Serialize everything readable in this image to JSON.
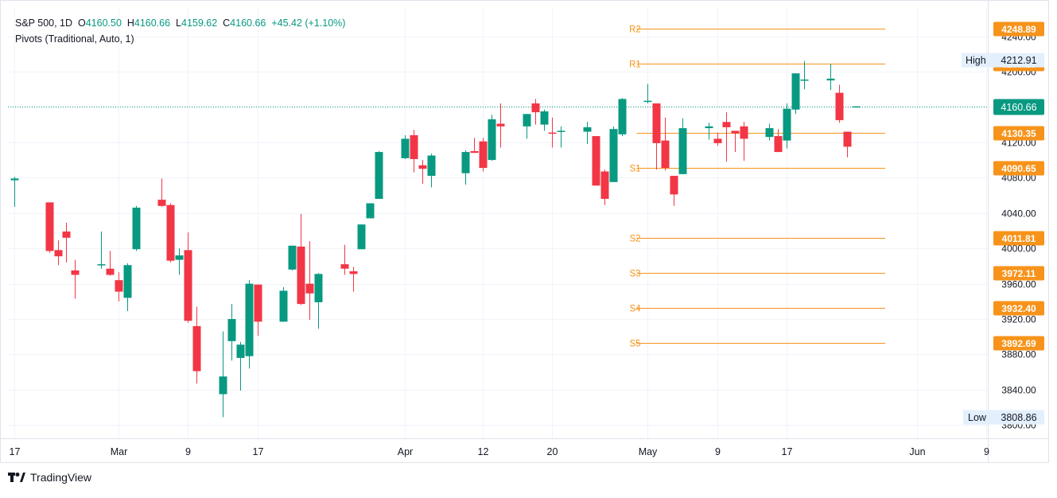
{
  "header": {
    "symbol": "S&P 500, 1D",
    "open_label": "O",
    "open": "4160.50",
    "high_label": "H",
    "high": "4160.66",
    "low_label": "L",
    "low": "4159.62",
    "close_label": "C",
    "close": "4160.66",
    "change": "+45.42 (+1.10%)",
    "indicator": "Pivots (Traditional, Auto, 1)"
  },
  "colors": {
    "up": "#089981",
    "down": "#f23645",
    "pivot": "#f7931a",
    "grid": "#f0f3fa",
    "axis_text": "#131722",
    "last_price": "#089981"
  },
  "footer": {
    "brand": "TradingView",
    "logo": "tradingview-logo-icon"
  },
  "chart_data": {
    "type": "candlestick",
    "y_range": [
      3785,
      4272
    ],
    "y_ticks": [
      3800,
      3840,
      3880,
      3920,
      3960,
      4000,
      4040,
      4080,
      4120,
      4160,
      4200,
      4240
    ],
    "y_tick_labels": [
      "3800.00",
      "3840.00",
      "3880.00",
      "3920.00",
      "3960.00",
      "4000.00",
      "4040.00",
      "4080.00",
      "4120.00",
      "4160.00",
      "4200.00",
      "4240.00"
    ],
    "x_ticks": [
      {
        "label": "17",
        "date": "2023-02-17"
      },
      {
        "label": "Mar",
        "date": "2023-03-01"
      },
      {
        "label": "9",
        "date": "2023-03-09"
      },
      {
        "label": "17",
        "date": "2023-03-17"
      },
      {
        "label": "Apr",
        "date": "2023-04-03"
      },
      {
        "label": "12",
        "date": "2023-04-12"
      },
      {
        "label": "20",
        "date": "2023-04-20"
      },
      {
        "label": "May",
        "date": "2023-05-01"
      },
      {
        "label": "9",
        "date": "2023-05-09"
      },
      {
        "label": "17",
        "date": "2023-05-17"
      },
      {
        "label": "Jun",
        "date": "2023-06-01"
      },
      {
        "label": "9",
        "date": "2023-06-09"
      }
    ],
    "candles": [
      {
        "date": "2023-02-17",
        "o": 4077,
        "h": 4081,
        "l": 4047,
        "c": 4079
      },
      {
        "date": "2023-02-21",
        "o": 4052,
        "h": 4052,
        "l": 3995,
        "c": 3997
      },
      {
        "date": "2023-02-22",
        "o": 3998,
        "h": 4009,
        "l": 3981,
        "c": 3991
      },
      {
        "date": "2023-02-23",
        "o": 4019,
        "h": 4029,
        "l": 3984,
        "c": 4012
      },
      {
        "date": "2023-02-24",
        "o": 3975,
        "h": 3987,
        "l": 3943,
        "c": 3970
      },
      {
        "date": "2023-02-27",
        "o": 3982,
        "h": 4019,
        "l": 3977,
        "c": 3982
      },
      {
        "date": "2023-02-28",
        "o": 3977,
        "h": 3997,
        "l": 3969,
        "c": 3970
      },
      {
        "date": "2023-03-01",
        "o": 3964,
        "h": 3973,
        "l": 3940,
        "c": 3951
      },
      {
        "date": "2023-03-02",
        "o": 3944,
        "h": 3983,
        "l": 3929,
        "c": 3981
      },
      {
        "date": "2023-03-03",
        "o": 3999,
        "h": 4048,
        "l": 3997,
        "c": 4046
      },
      {
        "date": "2023-03-06",
        "o": 4055,
        "h": 4079,
        "l": 4047,
        "c": 4048
      },
      {
        "date": "2023-03-07",
        "o": 4049,
        "h": 4051,
        "l": 3984,
        "c": 3986
      },
      {
        "date": "2023-03-08",
        "o": 3987,
        "h": 4000,
        "l": 3970,
        "c": 3992
      },
      {
        "date": "2023-03-09",
        "o": 3998,
        "h": 4018,
        "l": 3916,
        "c": 3918
      },
      {
        "date": "2023-03-10",
        "o": 3912,
        "h": 3934,
        "l": 3847,
        "c": 3861
      },
      {
        "date": "2023-03-13",
        "o": 3835,
        "h": 3906,
        "l": 3809,
        "c": 3855
      },
      {
        "date": "2023-03-14",
        "o": 3895,
        "h": 3937,
        "l": 3873,
        "c": 3920
      },
      {
        "date": "2023-03-15",
        "o": 3876,
        "h": 3894,
        "l": 3839,
        "c": 3891
      },
      {
        "date": "2023-03-16",
        "o": 3878,
        "h": 3964,
        "l": 3864,
        "c": 3960
      },
      {
        "date": "2023-03-17",
        "o": 3959,
        "h": 3959,
        "l": 3901,
        "c": 3917
      },
      {
        "date": "2023-03-20",
        "o": 3917,
        "h": 3956,
        "l": 3917,
        "c": 3952
      },
      {
        "date": "2023-03-21",
        "o": 3976,
        "h": 4003,
        "l": 3975,
        "c": 4003
      },
      {
        "date": "2023-03-22",
        "o": 4002,
        "h": 4039,
        "l": 3936,
        "c": 3937
      },
      {
        "date": "2023-03-23",
        "o": 3960,
        "h": 4008,
        "l": 3919,
        "c": 3949
      },
      {
        "date": "2023-03-24",
        "o": 3939,
        "h": 3972,
        "l": 3909,
        "c": 3971
      },
      {
        "date": "2023-03-27",
        "o": 3982,
        "h": 4004,
        "l": 3970,
        "c": 3977
      },
      {
        "date": "2023-03-28",
        "o": 3974,
        "h": 3979,
        "l": 3951,
        "c": 3971
      },
      {
        "date": "2023-03-29",
        "o": 3999,
        "h": 4027,
        "l": 3999,
        "c": 4027
      },
      {
        "date": "2023-03-30",
        "o": 4034,
        "h": 4047,
        "l": 4034,
        "c": 4051
      },
      {
        "date": "2023-03-31",
        "o": 4056,
        "h": 4110,
        "l": 4056,
        "c": 4109
      },
      {
        "date": "2023-04-03",
        "o": 4102,
        "h": 4128,
        "l": 4101,
        "c": 4124
      },
      {
        "date": "2023-04-04",
        "o": 4128,
        "h": 4134,
        "l": 4086,
        "c": 4101
      },
      {
        "date": "2023-04-05",
        "o": 4094,
        "h": 4100,
        "l": 4073,
        "c": 4090
      },
      {
        "date": "2023-04-06",
        "o": 4082,
        "h": 4107,
        "l": 4069,
        "c": 4105
      },
      {
        "date": "2023-04-10",
        "o": 4085,
        "h": 4111,
        "l": 4072,
        "c": 4109
      },
      {
        "date": "2023-04-11",
        "o": 4110,
        "h": 4125,
        "l": 4108,
        "c": 4108
      },
      {
        "date": "2023-04-12",
        "o": 4121,
        "h": 4125,
        "l": 4087,
        "c": 4091
      },
      {
        "date": "2023-04-13",
        "o": 4100,
        "h": 4151,
        "l": 4099,
        "c": 4146
      },
      {
        "date": "2023-04-14",
        "o": 4141,
        "h": 4164,
        "l": 4114,
        "c": 4138
      },
      {
        "date": "2023-04-17",
        "o": 4138,
        "h": 4152,
        "l": 4124,
        "c": 4152
      },
      {
        "date": "2023-04-18",
        "o": 4164,
        "h": 4169,
        "l": 4140,
        "c": 4154
      },
      {
        "date": "2023-04-19",
        "o": 4140,
        "h": 4157,
        "l": 4133,
        "c": 4155
      },
      {
        "date": "2023-04-20",
        "o": 4131,
        "h": 4148,
        "l": 4114,
        "c": 4130
      },
      {
        "date": "2023-04-21",
        "o": 4132,
        "h": 4138,
        "l": 4114,
        "c": 4133
      },
      {
        "date": "2023-04-24",
        "o": 4132,
        "h": 4143,
        "l": 4118,
        "c": 4137
      },
      {
        "date": "2023-04-25",
        "o": 4127,
        "h": 4127,
        "l": 4071,
        "c": 4071
      },
      {
        "date": "2023-04-26",
        "o": 4087,
        "h": 4089,
        "l": 4049,
        "c": 4056
      },
      {
        "date": "2023-04-27",
        "o": 4075,
        "h": 4138,
        "l": 4075,
        "c": 4135
      },
      {
        "date": "2023-04-28",
        "o": 4129,
        "h": 4170,
        "l": 4127,
        "c": 4169
      },
      {
        "date": "2023-05-01",
        "o": 4166,
        "h": 4186,
        "l": 4164,
        "c": 4167
      },
      {
        "date": "2023-05-02",
        "o": 4164,
        "h": 4164,
        "l": 4089,
        "c": 4119
      },
      {
        "date": "2023-05-03",
        "o": 4122,
        "h": 4148,
        "l": 4088,
        "c": 4091
      },
      {
        "date": "2023-05-04",
        "o": 4082,
        "h": 4082,
        "l": 4048,
        "c": 4061
      },
      {
        "date": "2023-05-05",
        "o": 4084,
        "h": 4147,
        "l": 4084,
        "c": 4136
      },
      {
        "date": "2023-05-08",
        "o": 4136,
        "h": 4142,
        "l": 4123,
        "c": 4138
      },
      {
        "date": "2023-05-09",
        "o": 4124,
        "h": 4131,
        "l": 4116,
        "c": 4119
      },
      {
        "date": "2023-05-10",
        "o": 4143,
        "h": 4154,
        "l": 4098,
        "c": 4137
      },
      {
        "date": "2023-05-11",
        "o": 4133,
        "h": 4132,
        "l": 4109,
        "c": 4130
      },
      {
        "date": "2023-05-12",
        "o": 4138,
        "h": 4143,
        "l": 4099,
        "c": 4124
      },
      {
        "date": "2023-05-15",
        "o": 4126,
        "h": 4141,
        "l": 4122,
        "c": 4136
      },
      {
        "date": "2023-05-16",
        "o": 4127,
        "h": 4135,
        "l": 4109,
        "c": 4109
      },
      {
        "date": "2023-05-17",
        "o": 4122,
        "h": 4164,
        "l": 4113,
        "c": 4158
      },
      {
        "date": "2023-05-18",
        "o": 4157,
        "h": 4198,
        "l": 4152,
        "c": 4198
      },
      {
        "date": "2023-05-19",
        "o": 4191,
        "h": 4212,
        "l": 4180,
        "c": 4191
      },
      {
        "date": "2023-05-22",
        "o": 4190,
        "h": 4209,
        "l": 4179,
        "c": 4192
      },
      {
        "date": "2023-05-23",
        "o": 4176,
        "h": 4185,
        "l": 4142,
        "c": 4145
      },
      {
        "date": "2023-05-24",
        "o": 4132,
        "h": 4132,
        "l": 4103,
        "c": 4115
      },
      {
        "date": "2023-05-25",
        "o": 4160.5,
        "h": 4160.66,
        "l": 4159.62,
        "c": 4160.66
      }
    ],
    "pivots": [
      {
        "label": "R2",
        "value": 4248.89
      },
      {
        "label": "R1",
        "value": 4209.19
      },
      {
        "label": "P",
        "value": 4130.35
      },
      {
        "label": "S1",
        "value": 4090.65
      },
      {
        "label": "S2",
        "value": 4011.81
      },
      {
        "label": "S3",
        "value": 3972.11
      },
      {
        "label": "S4",
        "value": 3932.4
      },
      {
        "label": "S5",
        "value": 3892.69
      }
    ],
    "pivot_period": [
      "2023-05-01",
      "2023-05-31"
    ],
    "pivot_value_labels": [
      "4248.89",
      "4209.19",
      "4130.35",
      "4090.65",
      "4011.81",
      "3972.11",
      "3932.40",
      "3892.69"
    ],
    "last_price": {
      "value": 4160.66,
      "label": "4160.66"
    },
    "high_marker": {
      "label": "High",
      "value": 4212.91,
      "text": "4212.91"
    },
    "low_marker": {
      "label": "Low",
      "value": 3808.86,
      "text": "3808.86"
    }
  }
}
